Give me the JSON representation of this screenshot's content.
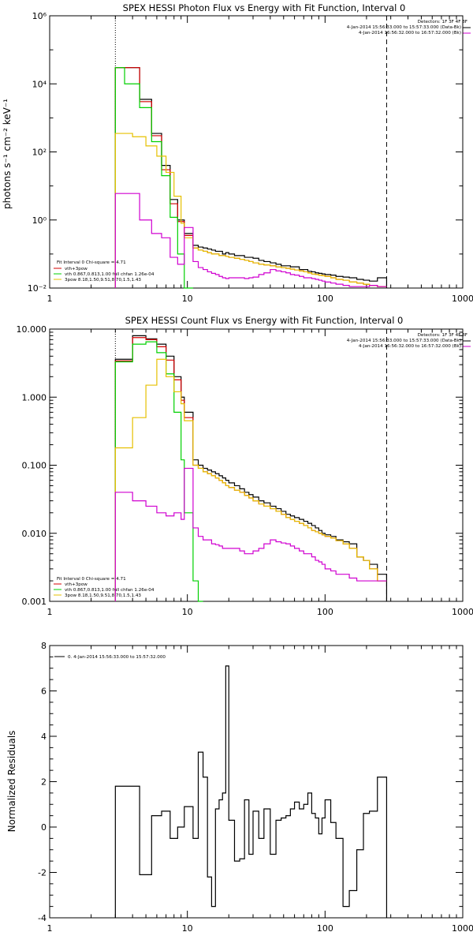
{
  "chart_data": [
    {
      "type": "line",
      "title": "SPEX HESSI Photon Flux vs Energy with Fit Function, Interval 0",
      "xlabel": "",
      "ylabel": "photons s⁻¹ cm⁻² keV⁻¹",
      "xscale": "log",
      "yscale": "log",
      "xlim": [
        1,
        1000
      ],
      "ylim": [
        0.01,
        1000000
      ],
      "x_ticks": [
        {
          "v": 1,
          "label": "1"
        },
        {
          "v": 10,
          "label": "10"
        },
        {
          "v": 100,
          "label": "100"
        },
        {
          "v": 1000,
          "label": "1000"
        }
      ],
      "y_ticks": [
        {
          "v": 0.01,
          "label": "10⁻²"
        },
        {
          "v": 1,
          "label": "10⁰"
        },
        {
          "v": 100,
          "label": "10²"
        },
        {
          "v": 10000,
          "label": "10⁴"
        },
        {
          "v": 1000000,
          "label": "10⁶"
        }
      ],
      "vlines": [
        {
          "x": 3,
          "style": "dotted"
        },
        {
          "x": 280,
          "style": "dashed"
        }
      ],
      "info_lines": [
        "Detectors: 1F 3F 4F 8F",
        "4-Jan-2014 15:56:33.000 to 15:57:33.000 (Data-Bk)",
        "4-Jan-2014 16:56:32.000 to 16:57:32.000 (Bk)"
      ],
      "legend": {
        "position": "bottom-left",
        "header": "Fit Interval 0   Chi-square = 4.71",
        "entries": [
          {
            "label": "vth+3pow",
            "color": "#d40000"
          },
          {
            "label": "vth 0.867,0.813,1.00  full chfan 1.26e-04",
            "color": "#00d000"
          },
          {
            "label": "3pow 8.18,1.50,9.51,8.70,1.5,1.43",
            "color": "#e6c000"
          }
        ]
      },
      "edges": [
        3,
        3.5,
        4,
        4.5,
        5,
        5.5,
        6,
        6.5,
        7,
        7.5,
        8,
        8.5,
        9,
        9.5,
        10,
        11,
        12,
        13,
        14,
        15,
        16,
        17,
        18,
        19,
        20,
        22,
        24,
        26,
        28,
        30,
        33,
        36,
        40,
        44,
        48,
        52,
        56,
        60,
        65,
        70,
        75,
        80,
        85,
        90,
        95,
        100,
        110,
        120,
        135,
        150,
        170,
        190,
        210,
        240,
        280
      ],
      "series": [
        {
          "name": "data",
          "color": "#000000",
          "values": [
            30000,
            30000,
            30000,
            3500,
            3500,
            350,
            350,
            40,
            40,
            4,
            4,
            1,
            1,
            0.4,
            0.4,
            0.18,
            0.16,
            0.15,
            0.14,
            0.13,
            0.12,
            0.12,
            0.1,
            0.11,
            0.1,
            0.09,
            0.09,
            0.08,
            0.08,
            0.075,
            0.065,
            0.06,
            0.055,
            0.05,
            0.045,
            0.045,
            0.042,
            0.042,
            0.035,
            0.035,
            0.031,
            0.03,
            0.028,
            0.027,
            0.026,
            0.025,
            0.024,
            0.022,
            0.021,
            0.02,
            0.018,
            0.017,
            0.016,
            0.02
          ]
        },
        {
          "name": "vth+3pow",
          "color": "#d40000",
          "values": [
            30000,
            30000,
            30000,
            3000,
            3000,
            300,
            300,
            30,
            30,
            3,
            3,
            0.9,
            0.9,
            0.35,
            0.35,
            0.15,
            0.13,
            0.12,
            0.11,
            0.1,
            0.1,
            0.09,
            0.09,
            0.085,
            0.08,
            0.075,
            0.07,
            0.065,
            0.06,
            0.055,
            0.05,
            0.048,
            0.045,
            0.042,
            0.04,
            0.038,
            0.036,
            0.034,
            0.032,
            0.03,
            0.028,
            0.026,
            0.025,
            0.024,
            0.023,
            0.022,
            0.02,
            0.018,
            0.017,
            0.015,
            0.014,
            0.013,
            0.012,
            0.011
          ]
        },
        {
          "name": "vth",
          "color": "#00d000",
          "values": [
            30000,
            10000,
            10000,
            2000,
            2000,
            200,
            200,
            20,
            20,
            1.2,
            1.2,
            0.1,
            0.1,
            0.01,
            0.01
          ]
        },
        {
          "name": "3pow",
          "color": "#e6c000",
          "values": [
            350,
            350,
            280,
            280,
            150,
            150,
            75,
            75,
            25,
            25,
            5,
            5,
            0.8,
            0.3,
            0.3,
            0.15,
            0.13,
            0.12,
            0.11,
            0.1,
            0.1,
            0.09,
            0.09,
            0.085,
            0.08,
            0.075,
            0.07,
            0.065,
            0.06,
            0.055,
            0.05,
            0.048,
            0.045,
            0.042,
            0.04,
            0.038,
            0.036,
            0.034,
            0.032,
            0.03,
            0.028,
            0.026,
            0.025,
            0.024,
            0.023,
            0.022,
            0.02,
            0.018,
            0.017,
            0.015,
            0.014,
            0.013,
            0.012,
            0.011
          ]
        },
        {
          "name": "bk",
          "color": "#d000d0",
          "values": [
            6,
            6,
            6,
            1,
            1,
            0.4,
            0.4,
            0.3,
            0.3,
            0.08,
            0.08,
            0.05,
            0.05,
            0.6,
            0.6,
            0.06,
            0.04,
            0.035,
            0.03,
            0.027,
            0.025,
            0.022,
            0.02,
            0.019,
            0.02,
            0.02,
            0.02,
            0.019,
            0.02,
            0.021,
            0.025,
            0.028,
            0.035,
            0.032,
            0.03,
            0.028,
            0.025,
            0.024,
            0.022,
            0.02,
            0.02,
            0.019,
            0.018,
            0.017,
            0.016,
            0.015,
            0.014,
            0.013,
            0.012,
            0.011,
            0.011,
            0.011,
            0.012,
            0.011
          ]
        }
      ]
    },
    {
      "type": "line",
      "title": "SPEX HESSI Count Flux vs Energy with Fit Function, Interval 0",
      "xlabel": "",
      "ylabel": "",
      "xscale": "log",
      "yscale": "log",
      "xlim": [
        1,
        1000
      ],
      "ylim": [
        0.001,
        10
      ],
      "x_ticks": [
        {
          "v": 1,
          "label": "1"
        },
        {
          "v": 10,
          "label": "10"
        },
        {
          "v": 100,
          "label": "100"
        },
        {
          "v": 1000,
          "label": "1000"
        }
      ],
      "y_ticks": [
        {
          "v": 0.001,
          "label": "0.001"
        },
        {
          "v": 0.01,
          "label": "0.010"
        },
        {
          "v": 0.1,
          "label": "0.100"
        },
        {
          "v": 1,
          "label": "1.000"
        },
        {
          "v": 10,
          "label": "10.000"
        }
      ],
      "vlines": [
        {
          "x": 3,
          "style": "dotted"
        },
        {
          "x": 280,
          "style": "dashed"
        }
      ],
      "info_lines": [
        "Detectors: 1F 3F 4F 8F",
        "4-Jan-2014 15:56:33.000 to 15:57:33.000 (Data-Bk)",
        "4-Jan-2014 16:56:32.000 to 16:57:32.000 (Bk)"
      ],
      "legend": {
        "position": "bottom-left",
        "header": "Fit Interval 0   Chi-square = 4.71",
        "entries": [
          {
            "label": "vth+3pow",
            "color": "#d40000"
          },
          {
            "label": "vth 0.867,0.813,1.00  full chfan 1.26e-04",
            "color": "#00d000"
          },
          {
            "label": "3pow 8.18,1.50,9.51,8.70,1.5,1.43",
            "color": "#e6c000"
          }
        ]
      },
      "edges": [
        3,
        3.5,
        4,
        4.5,
        5,
        5.5,
        6,
        6.5,
        7,
        7.5,
        8,
        8.5,
        9,
        9.5,
        10,
        11,
        12,
        13,
        14,
        15,
        16,
        17,
        18,
        19,
        20,
        22,
        24,
        26,
        28,
        30,
        33,
        36,
        40,
        44,
        48,
        52,
        56,
        60,
        65,
        70,
        75,
        80,
        85,
        90,
        95,
        100,
        110,
        120,
        135,
        150,
        170,
        190,
        210,
        240,
        280
      ],
      "series": [
        {
          "name": "data",
          "color": "#000000",
          "values": [
            3.6,
            3.6,
            8,
            8,
            7.2,
            7.2,
            6,
            6,
            4,
            4,
            2,
            2,
            1,
            0.6,
            0.6,
            0.12,
            0.1,
            0.09,
            0.085,
            0.08,
            0.075,
            0.07,
            0.065,
            0.06,
            0.055,
            0.05,
            0.045,
            0.04,
            0.037,
            0.034,
            0.03,
            0.028,
            0.025,
            0.023,
            0.021,
            0.019,
            0.018,
            0.017,
            0.016,
            0.015,
            0.014,
            0.013,
            0.012,
            0.011,
            0.01,
            0.0095,
            0.009,
            0.008,
            0.0075,
            0.007,
            0.0045,
            0.004,
            0.0035,
            0.0025
          ]
        },
        {
          "name": "vth+3pow",
          "color": "#d40000",
          "values": [
            3.4,
            3.4,
            7.5,
            7.5,
            7,
            7,
            5.5,
            5.5,
            3.5,
            3.5,
            1.8,
            1.8,
            0.9,
            0.5,
            0.5,
            0.1,
            0.09,
            0.08,
            0.075,
            0.07,
            0.065,
            0.06,
            0.055,
            0.05,
            0.047,
            0.043,
            0.04,
            0.036,
            0.033,
            0.03,
            0.027,
            0.025,
            0.023,
            0.021,
            0.019,
            0.017,
            0.016,
            0.015,
            0.014,
            0.013,
            0.012,
            0.011,
            0.0105,
            0.01,
            0.0095,
            0.009,
            0.0085,
            0.0078,
            0.007,
            0.006,
            0.0045,
            0.004,
            0.003,
            0.002
          ]
        },
        {
          "name": "vth",
          "color": "#00d000",
          "values": [
            3.3,
            3.3,
            6,
            6,
            6.5,
            6.5,
            4.5,
            4.5,
            2.2,
            2.2,
            0.6,
            0.6,
            0.12,
            0.02,
            0.02,
            0.002,
            0.001
          ]
        },
        {
          "name": "3pow",
          "color": "#e6c000",
          "values": [
            0.18,
            0.18,
            0.5,
            0.5,
            1.5,
            1.5,
            3.6,
            3.6,
            2,
            2,
            1.2,
            1.2,
            0.8,
            0.45,
            0.45,
            0.1,
            0.09,
            0.08,
            0.075,
            0.07,
            0.065,
            0.06,
            0.055,
            0.05,
            0.047,
            0.043,
            0.04,
            0.036,
            0.033,
            0.03,
            0.027,
            0.025,
            0.023,
            0.021,
            0.019,
            0.017,
            0.016,
            0.015,
            0.014,
            0.013,
            0.012,
            0.011,
            0.0105,
            0.01,
            0.0095,
            0.009,
            0.0085,
            0.0078,
            0.007,
            0.006,
            0.0045,
            0.004,
            0.003,
            0.002
          ]
        },
        {
          "name": "bk",
          "color": "#d000d0",
          "values": [
            0.04,
            0.04,
            0.03,
            0.03,
            0.025,
            0.025,
            0.02,
            0.02,
            0.018,
            0.018,
            0.02,
            0.02,
            0.016,
            0.09,
            0.09,
            0.012,
            0.009,
            0.008,
            0.008,
            0.007,
            0.0068,
            0.0065,
            0.006,
            0.006,
            0.006,
            0.006,
            0.0055,
            0.005,
            0.005,
            0.0055,
            0.006,
            0.007,
            0.008,
            0.0075,
            0.0072,
            0.007,
            0.0065,
            0.006,
            0.0055,
            0.005,
            0.005,
            0.0045,
            0.004,
            0.0038,
            0.0035,
            0.003,
            0.0028,
            0.0025,
            0.0025,
            0.0022,
            0.002,
            0.002,
            0.002,
            0.002
          ]
        }
      ]
    },
    {
      "type": "line",
      "title": "",
      "xlabel": "",
      "ylabel": "Normalized Residuals",
      "xscale": "log",
      "yscale": "linear",
      "xlim": [
        1,
        1000
      ],
      "ylim": [
        -4,
        8
      ],
      "x_ticks": [
        {
          "v": 1,
          "label": "1"
        },
        {
          "v": 10,
          "label": "10"
        },
        {
          "v": 100,
          "label": "100"
        },
        {
          "v": 1000,
          "label": "1000"
        }
      ],
      "y_ticks": [
        {
          "v": -4,
          "label": "-4"
        },
        {
          "v": -2,
          "label": "-2"
        },
        {
          "v": 0,
          "label": "0"
        },
        {
          "v": 2,
          "label": "2"
        },
        {
          "v": 4,
          "label": "4"
        },
        {
          "v": 6,
          "label": "6"
        },
        {
          "v": 8,
          "label": "8"
        }
      ],
      "legend": {
        "position": "top-left",
        "entries": [
          {
            "label": "0.  4-Jan-2014 15:56:33.000 to 15:57:32.000",
            "color": "#000000"
          }
        ]
      },
      "edges": [
        3,
        3.5,
        4,
        4.5,
        5,
        5.5,
        6,
        6.5,
        7,
        7.5,
        8,
        8.5,
        9,
        9.5,
        10,
        11,
        12,
        13,
        14,
        15,
        16,
        17,
        18,
        19,
        20,
        22,
        24,
        26,
        28,
        30,
        33,
        36,
        40,
        44,
        48,
        52,
        56,
        60,
        65,
        70,
        75,
        80,
        85,
        90,
        95,
        100,
        110,
        120,
        135,
        150,
        170,
        190,
        210,
        240,
        280
      ],
      "series": [
        {
          "name": "residuals",
          "color": "#000000",
          "values": [
            1.8,
            1.8,
            1.8,
            -2.1,
            -2.1,
            0.5,
            0.5,
            0.7,
            0.7,
            -0.5,
            -0.5,
            0,
            0,
            0.9,
            0.9,
            -0.5,
            3.3,
            2.2,
            -2.2,
            -3.5,
            0.8,
            1.2,
            1.5,
            7.1,
            0.3,
            -1.5,
            -1.4,
            1.2,
            -1.2,
            0.7,
            -0.5,
            0.8,
            -1.2,
            0.3,
            0.4,
            0.5,
            0.8,
            1.1,
            0.8,
            1,
            1.5,
            0.6,
            0.4,
            -0.3,
            0.4,
            1.2,
            0.2,
            -0.5,
            -3.5,
            -2.8,
            -1,
            0.6,
            0.7,
            2.2
          ]
        }
      ]
    }
  ]
}
